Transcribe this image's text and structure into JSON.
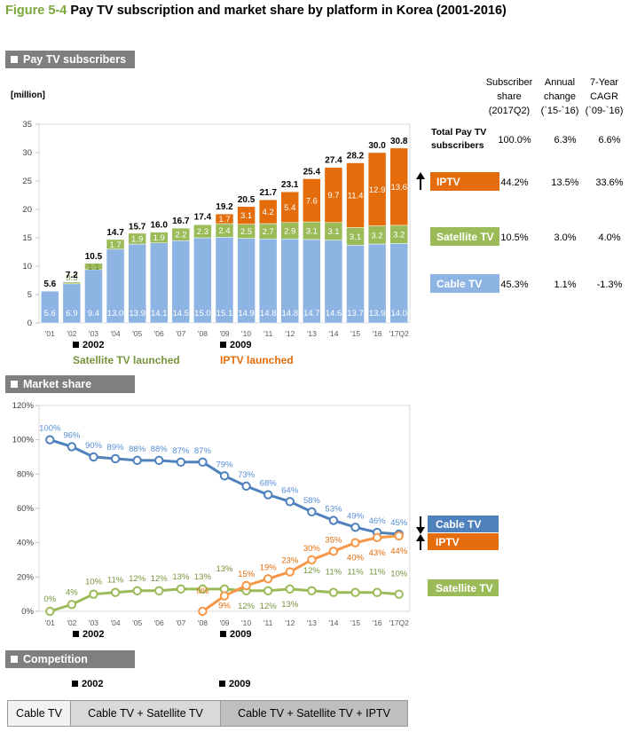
{
  "title": {
    "figure": "Figure 5-4",
    "text": "Pay TV subscription and market share by platform in Korea (2001-2016)"
  },
  "sections": {
    "subscribers": "Pay TV subscribers",
    "market_share": "Market share",
    "competition": "Competition"
  },
  "colors": {
    "cable": "#8db4e2",
    "satellite": "#9bbb59",
    "iptv": "#e46c0a",
    "cable_line": "#4f81bd",
    "cable_label": "#558ed5",
    "iptv_label": "#f79646",
    "satellite_line": "#77933c"
  },
  "annotations": {
    "y2002": "2002",
    "y2009": "2009",
    "satellite_launch": "Satellite TV launched",
    "iptv_launch": "IPTV launched"
  },
  "table": {
    "headers": [
      "Subscriber share (2017Q2)",
      "Annual change (`15-`16)",
      "7-Year CAGR (`09-`16)"
    ],
    "header_lines": [
      [
        "Subscriber",
        "share",
        "(2017Q2)"
      ],
      [
        "Annual",
        "change",
        "(`15-`16)"
      ],
      [
        "7-Year",
        "CAGR",
        "(`09-`16)"
      ]
    ],
    "rows": [
      {
        "label": "Total Pay TV subscribers",
        "label_lines": [
          "Total Pay TV",
          "subscribers"
        ],
        "share": "100.0%",
        "change": "6.3%",
        "cagr": "6.6%"
      },
      {
        "label": "IPTV",
        "share": "44.2%",
        "change": "13.5%",
        "cagr": "33.6%"
      },
      {
        "label": "Satellite TV",
        "share": "10.5%",
        "change": "3.0%",
        "cagr": "4.0%"
      },
      {
        "label": "Cable TV",
        "share": "45.3%",
        "change": "1.1%",
        "cagr": "-1.3%"
      }
    ]
  },
  "chart_data": [
    {
      "type": "bar",
      "stacked": true,
      "ylabel": "[million]",
      "ylim": [
        0,
        35
      ],
      "yticks": [
        0,
        5,
        10,
        15,
        20,
        25,
        30,
        35
      ],
      "categories": [
        "'01",
        "'02",
        "'03",
        "'04",
        "'05",
        "'06",
        "'07",
        "'08",
        "'09",
        "'10",
        "'11",
        "'12",
        "'13",
        "'14",
        "'15",
        "'16",
        "'17Q2"
      ],
      "series": [
        {
          "name": "Cable TV",
          "values": [
            5.6,
            6.9,
            9.4,
            13.0,
            13.9,
            14.1,
            14.5,
            15.0,
            15.1,
            14.9,
            14.8,
            14.8,
            14.7,
            14.6,
            13.7,
            13.9,
            14.0
          ]
        },
        {
          "name": "Satellite TV",
          "values": [
            null,
            0.3,
            1.1,
            1.7,
            1.9,
            1.9,
            2.2,
            2.3,
            2.4,
            2.5,
            2.7,
            2.9,
            3.1,
            3.1,
            3.1,
            3.2,
            3.2
          ]
        },
        {
          "name": "IPTV",
          "values": [
            null,
            null,
            null,
            null,
            null,
            null,
            null,
            null,
            1.7,
            3.1,
            4.2,
            5.4,
            7.6,
            9.7,
            11.4,
            12.9,
            13.6
          ]
        }
      ],
      "totals": [
        5.6,
        7.2,
        10.5,
        14.7,
        15.7,
        16.0,
        16.7,
        17.4,
        19.2,
        20.5,
        21.7,
        23.1,
        25.4,
        27.4,
        28.2,
        30.0,
        30.8
      ],
      "legend_placement": "right"
    },
    {
      "type": "line",
      "ylim": [
        0,
        120
      ],
      "yticks": [
        "0%",
        "20%",
        "40%",
        "60%",
        "80%",
        "100%",
        "120%"
      ],
      "categories": [
        "'01",
        "'02",
        "'03",
        "'04",
        "'05",
        "'06",
        "'07",
        "'08",
        "'09",
        "'10",
        "'11",
        "'12",
        "'13",
        "'14",
        "'15",
        "'16",
        "'17Q2"
      ],
      "series": [
        {
          "name": "Cable TV",
          "values": [
            100,
            96,
            90,
            89,
            88,
            88,
            87,
            87,
            79,
            73,
            68,
            64,
            58,
            53,
            49,
            46,
            45
          ]
        },
        {
          "name": "Satellite TV",
          "values": [
            0,
            4,
            10,
            11,
            12,
            12,
            13,
            13,
            13,
            12,
            12,
            13,
            12,
            11,
            11,
            11,
            10
          ]
        },
        {
          "name": "IPTV",
          "values": [
            null,
            null,
            null,
            null,
            null,
            null,
            null,
            0,
            9,
            15,
            19,
            23,
            30,
            35,
            40,
            43,
            44
          ]
        }
      ],
      "legend_placement": "right"
    }
  ],
  "competition": {
    "stages": [
      "Cable TV",
      "Cable TV + Satellite TV",
      "Cable TV + Satellite TV + IPTV"
    ]
  }
}
